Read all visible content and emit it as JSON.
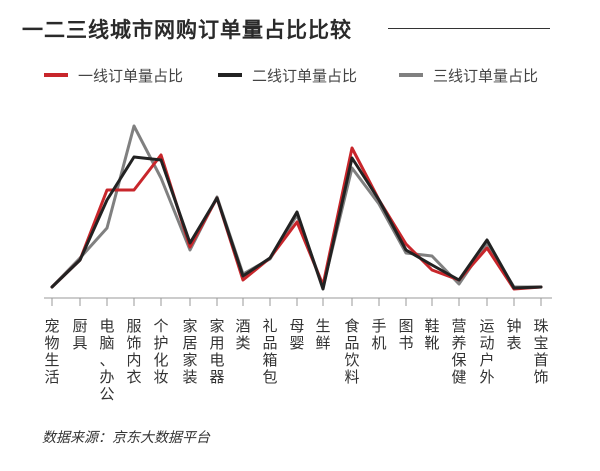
{
  "chart_data": {
    "type": "line",
    "title": "一二三线城市网购订单量占比比较",
    "categories": [
      "宠物生活",
      "厨具",
      "电脑、办公",
      "服饰内衣",
      "个护化妆",
      "家居家装",
      "家用电器",
      "酒类",
      "礼品箱包",
      "母婴",
      "生鲜",
      "食品饮料",
      "手机",
      "图书",
      "鞋靴",
      "营养保健",
      "运动户外",
      "钟表",
      "珠宝首饰"
    ],
    "x": [
      52,
      80,
      107,
      134,
      161,
      190,
      217,
      243,
      270,
      297,
      323,
      352,
      379,
      406,
      432,
      459,
      487,
      514,
      541
    ],
    "series": [
      {
        "name": "一线订单量占比",
        "color": "#c8262b",
        "values": [
          287,
          260,
          190,
          190,
          155,
          247,
          198,
          280,
          258,
          222,
          285,
          148,
          200,
          244,
          270,
          280,
          248,
          289,
          287
        ]
      },
      {
        "name": "二线订单量占比",
        "color": "#222222",
        "values": [
          287,
          260,
          200,
          157,
          160,
          243,
          198,
          276,
          258,
          212,
          289,
          158,
          200,
          250,
          265,
          280,
          240,
          288,
          287
        ]
      },
      {
        "name": "三线订单量占比",
        "color": "#808080",
        "values": [
          287,
          258,
          228,
          126,
          178,
          250,
          197,
          274,
          259,
          215,
          287,
          168,
          204,
          253,
          256,
          284,
          243,
          287,
          287
        ]
      }
    ]
  },
  "source": "数据来源：京东大数据平台"
}
